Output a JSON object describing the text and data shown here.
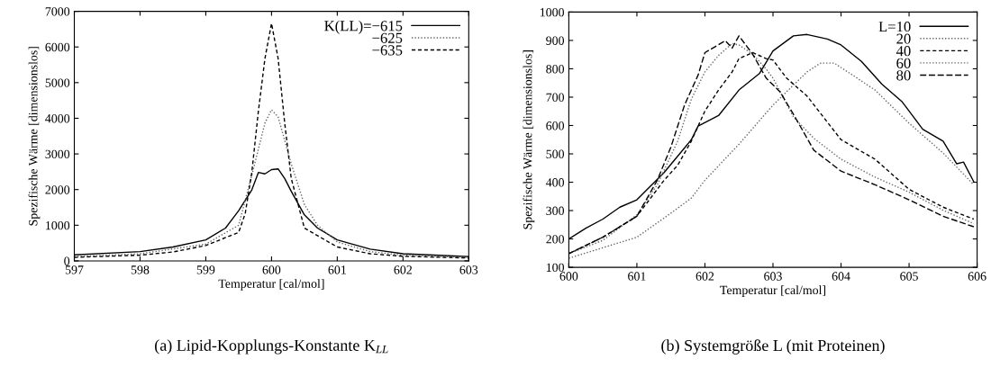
{
  "chart_data": [
    {
      "type": "line",
      "xlabel": "Temperatur [cal/mol]",
      "ylabel": "Spezifische Wärme [dimensionslos]",
      "annotations": [
        "(a) Lipid-Kopplungs-Konstante K$_{LL}$"
      ],
      "xlim": [
        597,
        603
      ],
      "xticks": [
        597,
        598,
        599,
        600,
        601,
        602,
        603
      ],
      "ylim": [
        0,
        7000
      ],
      "yticks": [
        0,
        1000,
        2000,
        3000,
        4000,
        5000,
        6000,
        7000
      ],
      "grid": false,
      "legend": "top right",
      "series": [
        {
          "name": "K(LL)=−615",
          "color": "#000000",
          "line_style": "solid",
          "x": [
            597,
            598,
            598.5,
            599,
            599.3,
            599.5,
            599.7,
            599.8,
            599.9,
            600,
            600.1,
            600.2,
            600.3,
            600.5,
            600.7,
            601,
            601.5,
            602,
            603
          ],
          "values": [
            170,
            260,
            390,
            590,
            920,
            1410,
            1990,
            2480,
            2440,
            2560,
            2580,
            2310,
            1950,
            1290,
            920,
            590,
            330,
            200,
            120
          ]
        },
        {
          "name": "−625",
          "color": "#666666",
          "line_style": "dotted",
          "x": [
            597,
            598,
            599,
            599.5,
            599.7,
            599.9,
            600,
            600.1,
            600.3,
            600.5,
            600.7,
            601,
            601.5,
            602,
            603
          ],
          "values": [
            120,
            200,
            470,
            1000,
            2400,
            3870,
            4240,
            4040,
            2720,
            1580,
            1000,
            530,
            260,
            160,
            100
          ]
        },
        {
          "name": "−635",
          "color": "#000000",
          "line_style": "dashed",
          "x": [
            597,
            598,
            598.5,
            599,
            599.5,
            599.6,
            599.7,
            599.8,
            599.9,
            600,
            600.1,
            600.2,
            600.3,
            600.5,
            601,
            601.5,
            602,
            603
          ],
          "values": [
            100,
            160,
            250,
            430,
            800,
            1330,
            2480,
            4200,
            5680,
            6660,
            5680,
            3870,
            2310,
            920,
            390,
            200,
            130,
            80
          ]
        }
      ]
    },
    {
      "type": "line",
      "xlabel": "Temperatur [cal/mol]",
      "ylabel": "Spezifische Wärme [dimensionslos]",
      "annotations": [
        "(b) Systemgröße L (mit Proteinen)"
      ],
      "xlim": [
        600,
        606
      ],
      "xticks": [
        600,
        601,
        602,
        603,
        604,
        605,
        606
      ],
      "ylim": [
        100,
        1000
      ],
      "yticks": [
        100,
        200,
        300,
        400,
        500,
        600,
        700,
        800,
        900,
        1000
      ],
      "grid": false,
      "legend": "top right",
      "series": [
        {
          "name": "L=10",
          "color": "#000000",
          "line_style": "solid",
          "x": [
            600,
            600.25,
            600.5,
            600.75,
            601,
            601.4,
            601.8,
            601.9,
            602.2,
            602.5,
            602.8,
            603,
            603.3,
            603.5,
            603.8,
            604,
            604.3,
            604.6,
            604.9,
            605,
            605.2,
            605.5,
            605.7,
            605.8,
            605.95
          ],
          "values": [
            200,
            238,
            270,
            312,
            338,
            434,
            550,
            598,
            635,
            725,
            783,
            863,
            916,
            921,
            905,
            884,
            826,
            746,
            683,
            651,
            587,
            545,
            465,
            471,
            402
          ]
        },
        {
          "name": "20",
          "color": "#666666",
          "line_style": "dotted",
          "x": [
            600,
            600.5,
            601,
            601.5,
            601.8,
            602,
            602.5,
            603,
            603.5,
            603.7,
            603.9,
            604.2,
            604.5,
            605,
            605.5,
            605.95
          ],
          "values": [
            132,
            169,
            206,
            291,
            344,
            407,
            534,
            672,
            789,
            820,
            820,
            773,
            725,
            608,
            503,
            391
          ]
        },
        {
          "name": "40",
          "color": "#000000",
          "line_style": "dashed",
          "x": [
            600,
            600.5,
            601,
            601.4,
            601.6,
            601.8,
            602,
            602.2,
            602.4,
            602.5,
            602.7,
            602.9,
            603,
            603.2,
            603.5,
            604,
            604.5,
            605,
            605.5,
            605.95
          ],
          "values": [
            148,
            206,
            280,
            407,
            460,
            545,
            651,
            725,
            789,
            836,
            857,
            836,
            831,
            767,
            704,
            550,
            481,
            375,
            312,
            270
          ]
        },
        {
          "name": "60",
          "color": "#666666",
          "line_style": "dotted",
          "x": [
            600,
            600.5,
            601,
            601.3,
            601.6,
            601.8,
            602,
            602.2,
            602.4,
            602.5,
            602.7,
            602.9,
            603,
            603.3,
            603.6,
            604,
            604.5,
            605,
            605.5,
            605.95
          ],
          "values": [
            148,
            195,
            285,
            391,
            545,
            693,
            789,
            847,
            889,
            884,
            852,
            799,
            767,
            630,
            555,
            481,
            418,
            365,
            301,
            254
          ]
        },
        {
          "name": "80",
          "color": "#000000",
          "line_style": "longdash",
          "x": [
            600,
            600.5,
            601,
            601.3,
            601.5,
            601.7,
            601.9,
            602,
            602.3,
            602.4,
            602.5,
            602.7,
            602.9,
            603.1,
            603.3,
            603.6,
            604,
            604.5,
            605,
            605.5,
            605.95
          ],
          "values": [
            148,
            206,
            280,
            407,
            524,
            672,
            778,
            857,
            899,
            873,
            916,
            852,
            767,
            720,
            640,
            513,
            439,
            391,
            338,
            280,
            243
          ]
        }
      ]
    }
  ]
}
